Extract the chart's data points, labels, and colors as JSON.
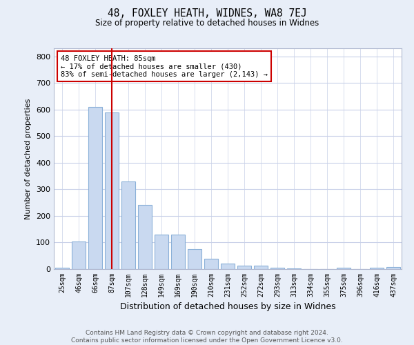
{
  "title": "48, FOXLEY HEATH, WIDNES, WA8 7EJ",
  "subtitle": "Size of property relative to detached houses in Widnes",
  "xlabel": "Distribution of detached houses by size in Widnes",
  "ylabel": "Number of detached properties",
  "categories": [
    "25sqm",
    "46sqm",
    "66sqm",
    "87sqm",
    "107sqm",
    "128sqm",
    "149sqm",
    "169sqm",
    "190sqm",
    "210sqm",
    "231sqm",
    "252sqm",
    "272sqm",
    "293sqm",
    "313sqm",
    "334sqm",
    "355sqm",
    "375sqm",
    "396sqm",
    "416sqm",
    "437sqm"
  ],
  "values": [
    5,
    105,
    610,
    590,
    330,
    240,
    130,
    130,
    75,
    40,
    20,
    12,
    12,
    5,
    3,
    0,
    0,
    5,
    0,
    5,
    7
  ],
  "bar_color": "#c9d9f0",
  "bar_edge_color": "#8ab0d8",
  "vline_x": 3,
  "vline_color": "#cc0000",
  "annotation_text": "48 FOXLEY HEATH: 85sqm\n← 17% of detached houses are smaller (430)\n83% of semi-detached houses are larger (2,143) →",
  "annotation_box_color": "white",
  "annotation_box_edge": "#cc0000",
  "ylim": [
    0,
    830
  ],
  "yticks": [
    0,
    100,
    200,
    300,
    400,
    500,
    600,
    700,
    800
  ],
  "footer": "Contains HM Land Registry data © Crown copyright and database right 2024.\nContains public sector information licensed under the Open Government Licence v3.0.",
  "bg_color": "#e8eef8",
  "plot_bg_color": "white",
  "grid_color": "#c8d0e8"
}
